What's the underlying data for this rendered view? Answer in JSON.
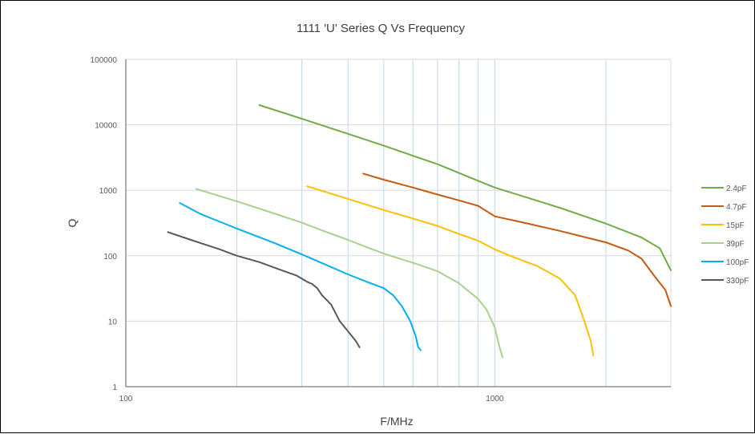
{
  "chart_data": {
    "type": "line",
    "title": "1111 'U' Series Q Vs Frequency",
    "xlabel": "F/MHz",
    "ylabel": "Q",
    "x_scale": "log",
    "y_scale": "log",
    "xlim": [
      100,
      3000
    ],
    "ylim": [
      1,
      100000
    ],
    "x_ticks": [
      100,
      1000
    ],
    "x_tick_labels": [
      "100",
      "1000"
    ],
    "x_gridlines": [
      200,
      300,
      400,
      500,
      600,
      700,
      800,
      900,
      1000,
      2000
    ],
    "y_ticks": [
      1,
      10,
      100,
      1000,
      10000,
      100000
    ],
    "y_tick_labels": [
      "1",
      "10",
      "100",
      "1000",
      "10000",
      "100000"
    ],
    "grid": true,
    "legend_position": "right",
    "series": [
      {
        "name": "2.4pF",
        "color": "#70ad47",
        "points": [
          [
            230,
            20000
          ],
          [
            300,
            12400
          ],
          [
            400,
            7300
          ],
          [
            500,
            4800
          ],
          [
            700,
            2500
          ],
          [
            900,
            1400
          ],
          [
            1000,
            1100
          ],
          [
            1200,
            800
          ],
          [
            1500,
            540
          ],
          [
            2000,
            310
          ],
          [
            2500,
            190
          ],
          [
            2800,
            130
          ],
          [
            3000,
            60
          ]
        ]
      },
      {
        "name": "4.7pF",
        "color": "#c55a11",
        "points": [
          [
            440,
            1800
          ],
          [
            500,
            1450
          ],
          [
            600,
            1100
          ],
          [
            700,
            860
          ],
          [
            800,
            700
          ],
          [
            900,
            580
          ],
          [
            1000,
            400
          ],
          [
            1200,
            320
          ],
          [
            1500,
            240
          ],
          [
            2000,
            160
          ],
          [
            2300,
            120
          ],
          [
            2500,
            90
          ],
          [
            2700,
            50
          ],
          [
            2900,
            30
          ],
          [
            3000,
            17
          ]
        ]
      },
      {
        "name": "15pF",
        "color": "#ffc000",
        "points": [
          [
            310,
            1150
          ],
          [
            400,
            740
          ],
          [
            500,
            500
          ],
          [
            600,
            370
          ],
          [
            700,
            285
          ],
          [
            800,
            215
          ],
          [
            900,
            170
          ],
          [
            1000,
            125
          ],
          [
            1100,
            100
          ],
          [
            1300,
            70
          ],
          [
            1500,
            45
          ],
          [
            1650,
            25
          ],
          [
            1750,
            10
          ],
          [
            1820,
            5
          ],
          [
            1850,
            3
          ]
        ]
      },
      {
        "name": "39pF",
        "color": "#a9d18e",
        "points": [
          [
            155,
            1050
          ],
          [
            200,
            680
          ],
          [
            250,
            450
          ],
          [
            300,
            320
          ],
          [
            350,
            230
          ],
          [
            400,
            175
          ],
          [
            450,
            135
          ],
          [
            500,
            108
          ],
          [
            600,
            78
          ],
          [
            700,
            58
          ],
          [
            800,
            38
          ],
          [
            900,
            22
          ],
          [
            950,
            15
          ],
          [
            1000,
            8
          ],
          [
            1030,
            4
          ],
          [
            1050,
            2.8
          ]
        ]
      },
      {
        "name": "100pF",
        "color": "#00b0f0",
        "points": [
          [
            140,
            640
          ],
          [
            160,
            430
          ],
          [
            180,
            330
          ],
          [
            200,
            260
          ],
          [
            250,
            160
          ],
          [
            300,
            105
          ],
          [
            350,
            72
          ],
          [
            400,
            52
          ],
          [
            450,
            40
          ],
          [
            500,
            32
          ],
          [
            530,
            25
          ],
          [
            560,
            17
          ],
          [
            590,
            10
          ],
          [
            610,
            6
          ],
          [
            620,
            4
          ],
          [
            630,
            3.6
          ]
        ]
      },
      {
        "name": "330pF",
        "color": "#595959",
        "points": [
          [
            130,
            230
          ],
          [
            150,
            175
          ],
          [
            180,
            125
          ],
          [
            200,
            100
          ],
          [
            230,
            80
          ],
          [
            260,
            62
          ],
          [
            290,
            50
          ],
          [
            310,
            40
          ],
          [
            320,
            37
          ],
          [
            330,
            32
          ],
          [
            340,
            25
          ],
          [
            360,
            18
          ],
          [
            380,
            10
          ],
          [
            400,
            7
          ],
          [
            420,
            5
          ],
          [
            430,
            4
          ]
        ]
      }
    ]
  }
}
